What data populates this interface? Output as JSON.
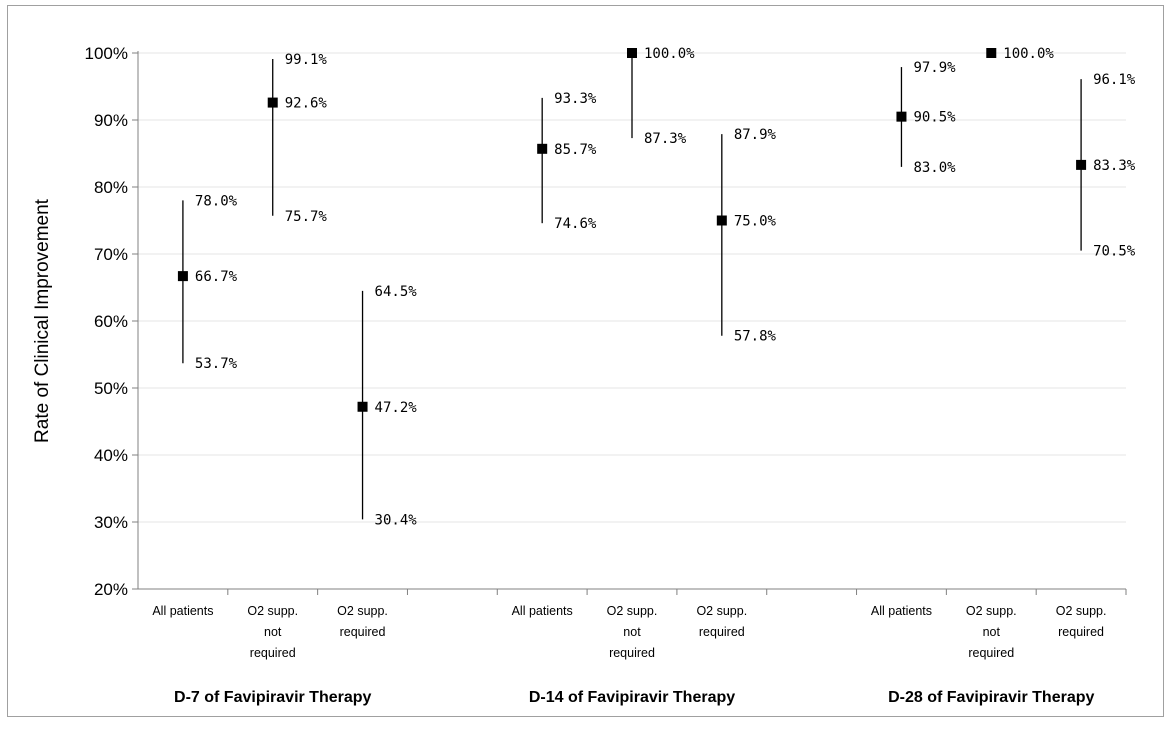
{
  "chart_data": {
    "type": "scatter",
    "title": "",
    "ylabel": "Rate of Clinical Improvement",
    "xlabel": "",
    "ylim": [
      20,
      100
    ],
    "yticks": [
      "20%",
      "30%",
      "40%",
      "50%",
      "60%",
      "70%",
      "80%",
      "90%",
      "100%"
    ],
    "grid": true,
    "legend": "none",
    "marker_color": "#000000",
    "groups": [
      {
        "label": "D-7 of Favipiravir Therapy",
        "points": [
          {
            "category": "All patients",
            "value": 66.7,
            "lower": 53.7,
            "upper": 78.0,
            "value_label": "66.7%",
            "lower_label": "53.7%",
            "upper_label": "78.0%"
          },
          {
            "category": "O2 supp. not required",
            "value": 92.6,
            "lower": 75.7,
            "upper": 99.1,
            "value_label": "92.6%",
            "lower_label": "75.7%",
            "upper_label": "99.1%"
          },
          {
            "category": "O2 supp. required",
            "value": 47.2,
            "lower": 30.4,
            "upper": 64.5,
            "value_label": "47.2%",
            "lower_label": "30.4%",
            "upper_label": "64.5%"
          }
        ]
      },
      {
        "label": "D-14 of Favipiravir Therapy",
        "points": [
          {
            "category": "All patients",
            "value": 85.7,
            "lower": 74.6,
            "upper": 93.3,
            "value_label": "85.7%",
            "lower_label": "74.6%",
            "upper_label": "93.3%"
          },
          {
            "category": "O2 supp. not required",
            "value": 100.0,
            "lower": 87.3,
            "upper": 100.0,
            "value_label": "100.0%",
            "lower_label": "87.3%",
            "upper_label": ""
          },
          {
            "category": "O2 supp. required",
            "value": 75.0,
            "lower": 57.8,
            "upper": 87.9,
            "value_label": "75.0%",
            "lower_label": "57.8%",
            "upper_label": "87.9%"
          }
        ]
      },
      {
        "label": "D-28 of Favipiravir Therapy",
        "points": [
          {
            "category": "All patients",
            "value": 90.5,
            "lower": 83.0,
            "upper": 97.9,
            "value_label": "90.5%",
            "lower_label": "83.0%",
            "upper_label": "97.9%"
          },
          {
            "category": "O2 supp. not required",
            "value": 100.0,
            "lower": 100.0,
            "upper": 100.0,
            "value_label": "100.0%",
            "lower_label": "",
            "upper_label": ""
          },
          {
            "category": "O2 supp. required",
            "value": 83.3,
            "lower": 70.5,
            "upper": 96.1,
            "value_label": "83.3%",
            "lower_label": "70.5%",
            "upper_label": "96.1%"
          }
        ]
      }
    ]
  }
}
